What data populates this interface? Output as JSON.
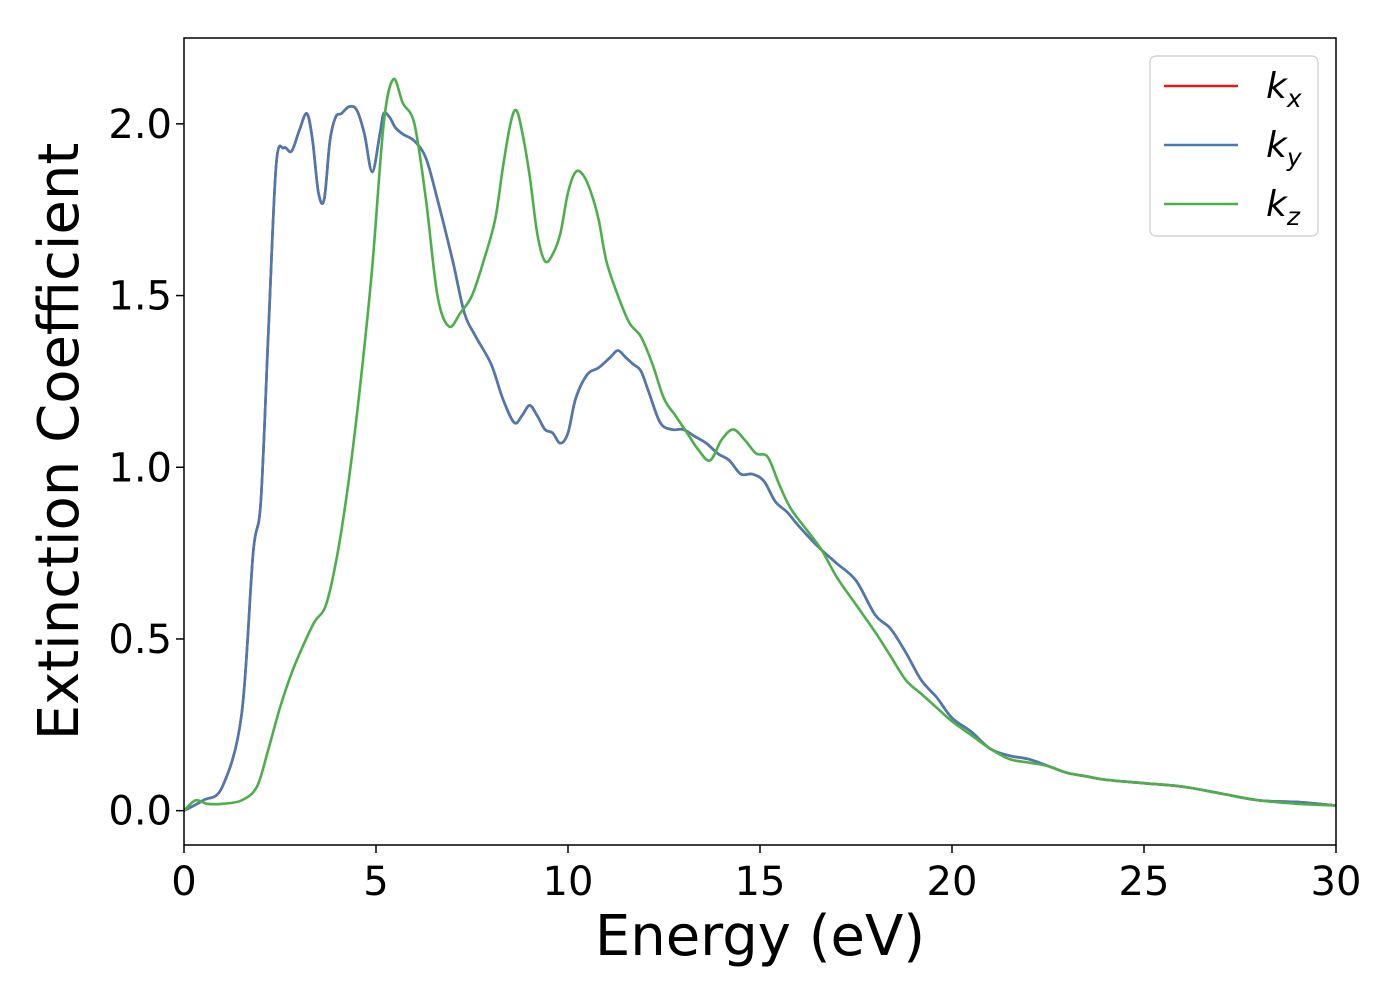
{
  "chart_data": {
    "type": "line",
    "title": "",
    "xlabel": "Energy (eV)",
    "ylabel": "Extinction Coefficient",
    "xlim": [
      0,
      30
    ],
    "ylim": [
      -0.1,
      2.25
    ],
    "xticks": [
      0,
      5,
      10,
      15,
      20,
      25,
      30
    ],
    "xtick_labels": [
      "0",
      "5",
      "10",
      "15",
      "20",
      "25",
      "30"
    ],
    "yticks": [
      0.0,
      0.5,
      1.0,
      1.5,
      2.0
    ],
    "ytick_labels": [
      "0.0",
      "0.5",
      "1.0",
      "1.5",
      "2.0"
    ],
    "grid": false,
    "legend_position": "top-right",
    "series": [
      {
        "name": "k_x",
        "legend_base": "k",
        "legend_sub": "x",
        "color": "#e41a1c",
        "x": [
          0,
          0.5,
          1.0,
          1.5,
          1.8,
          2.0,
          2.2,
          2.4,
          2.6,
          2.8,
          3.0,
          3.2,
          3.35,
          3.5,
          3.65,
          3.8,
          3.95,
          4.1,
          4.3,
          4.5,
          4.7,
          4.9,
          5.1,
          5.2,
          5.35,
          5.5,
          5.7,
          6.0,
          6.3,
          6.6,
          7.0,
          7.3,
          7.6,
          8.0,
          8.3,
          8.6,
          8.8,
          9.0,
          9.2,
          9.4,
          9.6,
          9.8,
          10.0,
          10.2,
          10.5,
          10.8,
          11.1,
          11.3,
          11.5,
          11.7,
          11.9,
          12.1,
          12.4,
          12.7,
          13.0,
          13.3,
          13.6,
          13.9,
          14.2,
          14.5,
          14.8,
          15.1,
          15.4,
          15.7,
          16.0,
          16.5,
          17.0,
          17.5,
          18.0,
          18.4,
          18.8,
          19.2,
          19.6,
          20.0,
          20.5,
          21.0,
          21.5,
          22.0,
          22.5,
          23.0,
          23.5,
          24.0,
          25.0,
          26.0,
          27.0,
          28.0,
          29.0,
          30.0
        ],
        "values": [
          0.0,
          0.03,
          0.07,
          0.28,
          0.75,
          0.9,
          1.4,
          1.88,
          1.93,
          1.92,
          1.98,
          2.03,
          1.95,
          1.8,
          1.78,
          1.95,
          2.02,
          2.03,
          2.05,
          2.04,
          1.97,
          1.86,
          1.97,
          2.03,
          2.02,
          1.99,
          1.97,
          1.95,
          1.9,
          1.78,
          1.6,
          1.45,
          1.38,
          1.3,
          1.2,
          1.13,
          1.15,
          1.18,
          1.15,
          1.11,
          1.1,
          1.07,
          1.1,
          1.2,
          1.27,
          1.29,
          1.32,
          1.34,
          1.32,
          1.3,
          1.28,
          1.22,
          1.13,
          1.11,
          1.11,
          1.09,
          1.07,
          1.04,
          1.02,
          0.98,
          0.98,
          0.96,
          0.9,
          0.87,
          0.83,
          0.77,
          0.72,
          0.67,
          0.57,
          0.53,
          0.46,
          0.38,
          0.33,
          0.27,
          0.23,
          0.18,
          0.16,
          0.15,
          0.13,
          0.11,
          0.1,
          0.09,
          0.08,
          0.07,
          0.05,
          0.03,
          0.025,
          0.015
        ]
      },
      {
        "name": "k_y",
        "legend_base": "k",
        "legend_sub": "y",
        "color": "#4a7ab2",
        "x": [
          0,
          0.5,
          1.0,
          1.5,
          1.8,
          2.0,
          2.2,
          2.4,
          2.6,
          2.8,
          3.0,
          3.2,
          3.35,
          3.5,
          3.65,
          3.8,
          3.95,
          4.1,
          4.3,
          4.5,
          4.7,
          4.9,
          5.1,
          5.2,
          5.35,
          5.5,
          5.7,
          6.0,
          6.3,
          6.6,
          7.0,
          7.3,
          7.6,
          8.0,
          8.3,
          8.6,
          8.8,
          9.0,
          9.2,
          9.4,
          9.6,
          9.8,
          10.0,
          10.2,
          10.5,
          10.8,
          11.1,
          11.3,
          11.5,
          11.7,
          11.9,
          12.1,
          12.4,
          12.7,
          13.0,
          13.3,
          13.6,
          13.9,
          14.2,
          14.5,
          14.8,
          15.1,
          15.4,
          15.7,
          16.0,
          16.5,
          17.0,
          17.5,
          18.0,
          18.4,
          18.8,
          19.2,
          19.6,
          20.0,
          20.5,
          21.0,
          21.5,
          22.0,
          22.5,
          23.0,
          23.5,
          24.0,
          25.0,
          26.0,
          27.0,
          28.0,
          29.0,
          30.0
        ],
        "values": [
          0.0,
          0.03,
          0.07,
          0.28,
          0.75,
          0.9,
          1.4,
          1.88,
          1.93,
          1.92,
          1.98,
          2.03,
          1.95,
          1.8,
          1.78,
          1.95,
          2.02,
          2.03,
          2.05,
          2.04,
          1.97,
          1.86,
          1.97,
          2.03,
          2.02,
          1.99,
          1.97,
          1.95,
          1.9,
          1.78,
          1.6,
          1.45,
          1.38,
          1.3,
          1.2,
          1.13,
          1.15,
          1.18,
          1.15,
          1.11,
          1.1,
          1.07,
          1.1,
          1.2,
          1.27,
          1.29,
          1.32,
          1.34,
          1.32,
          1.3,
          1.28,
          1.22,
          1.13,
          1.11,
          1.11,
          1.09,
          1.07,
          1.04,
          1.02,
          0.98,
          0.98,
          0.96,
          0.9,
          0.87,
          0.83,
          0.77,
          0.72,
          0.67,
          0.57,
          0.53,
          0.46,
          0.38,
          0.33,
          0.27,
          0.23,
          0.18,
          0.16,
          0.15,
          0.13,
          0.11,
          0.1,
          0.09,
          0.08,
          0.07,
          0.05,
          0.03,
          0.025,
          0.015
        ]
      },
      {
        "name": "k_z",
        "legend_base": "k",
        "legend_sub": "z",
        "color": "#4daf4a",
        "x": [
          0,
          0.3,
          0.6,
          1.0,
          1.5,
          1.9,
          2.2,
          2.5,
          2.8,
          3.1,
          3.4,
          3.7,
          4.0,
          4.3,
          4.6,
          4.9,
          5.2,
          5.45,
          5.7,
          6.0,
          6.3,
          6.6,
          6.9,
          7.2,
          7.5,
          7.8,
          8.1,
          8.3,
          8.5,
          8.65,
          8.8,
          9.0,
          9.2,
          9.4,
          9.6,
          9.8,
          10.0,
          10.2,
          10.4,
          10.6,
          10.8,
          11.0,
          11.3,
          11.6,
          11.9,
          12.2,
          12.5,
          12.8,
          13.1,
          13.4,
          13.7,
          14.0,
          14.3,
          14.6,
          14.9,
          15.2,
          15.5,
          15.8,
          16.2,
          16.6,
          17.0,
          17.5,
          18.0,
          18.4,
          18.8,
          19.2,
          19.6,
          20.0,
          20.5,
          21.0,
          21.5,
          22.0,
          22.5,
          23.0,
          23.5,
          24.0,
          25.0,
          26.0,
          27.0,
          28.0,
          29.0,
          30.0
        ],
        "values": [
          0.0,
          0.03,
          0.02,
          0.02,
          0.03,
          0.07,
          0.18,
          0.3,
          0.4,
          0.48,
          0.55,
          0.6,
          0.75,
          0.97,
          1.25,
          1.58,
          2.0,
          2.13,
          2.06,
          2.0,
          1.78,
          1.5,
          1.41,
          1.45,
          1.5,
          1.6,
          1.72,
          1.87,
          2.0,
          2.04,
          1.98,
          1.85,
          1.68,
          1.6,
          1.62,
          1.68,
          1.8,
          1.86,
          1.85,
          1.8,
          1.72,
          1.6,
          1.5,
          1.42,
          1.38,
          1.3,
          1.2,
          1.15,
          1.1,
          1.05,
          1.02,
          1.08,
          1.11,
          1.08,
          1.04,
          1.03,
          0.95,
          0.88,
          0.82,
          0.76,
          0.68,
          0.6,
          0.52,
          0.45,
          0.38,
          0.34,
          0.3,
          0.26,
          0.22,
          0.18,
          0.15,
          0.14,
          0.13,
          0.11,
          0.1,
          0.09,
          0.08,
          0.07,
          0.05,
          0.03,
          0.02,
          0.015
        ]
      }
    ]
  }
}
